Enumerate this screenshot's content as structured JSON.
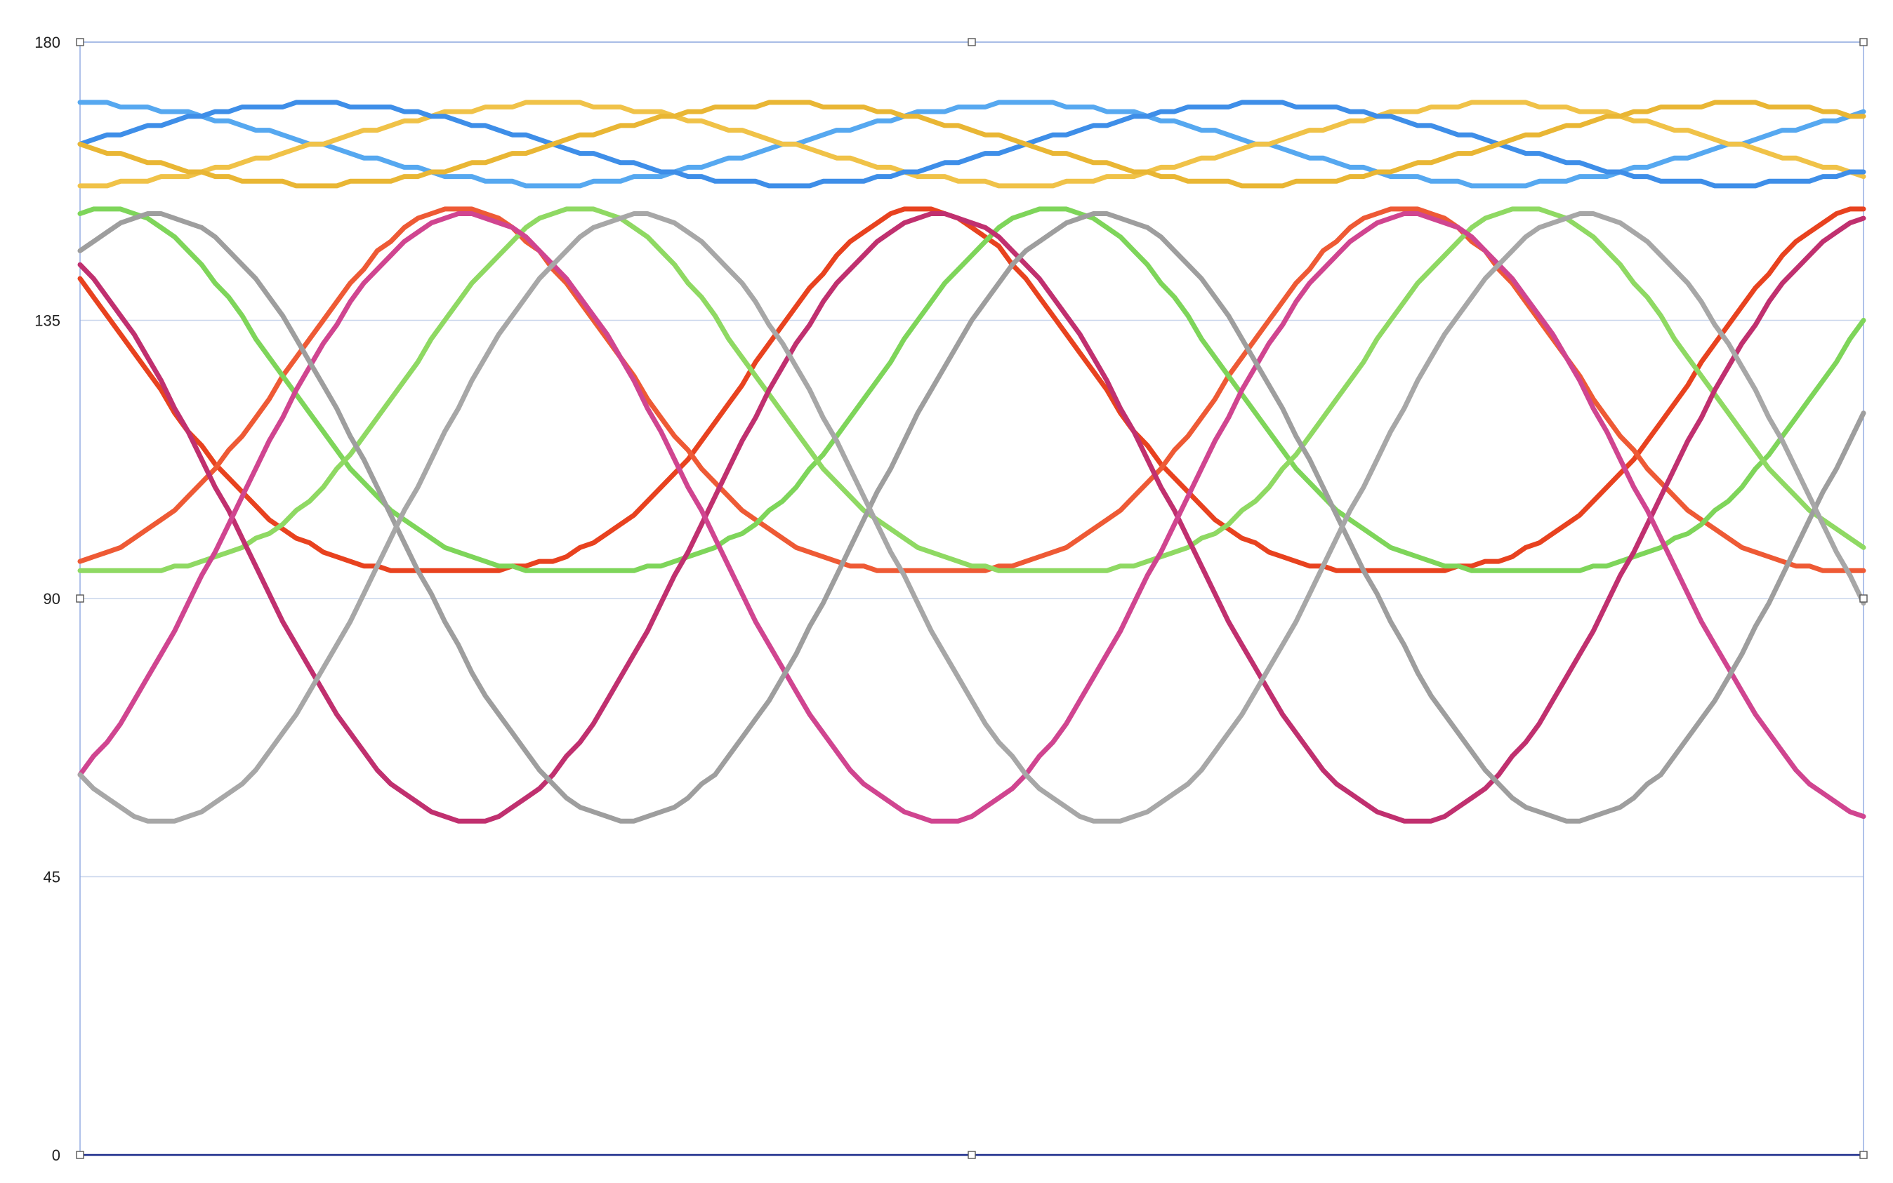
{
  "chart_data": {
    "type": "line",
    "title": "",
    "xlabel": "",
    "ylabel": "",
    "ylim": [
      0,
      180
    ],
    "yticks": [
      0,
      45,
      90,
      135,
      180
    ],
    "ytick_labels": [
      "0",
      "45",
      "90",
      "135",
      "180"
    ],
    "grid": "horizontal",
    "legend": "none",
    "x_count": 133,
    "series": [
      {
        "color": "#56A8F0",
        "kind": "flat",
        "mean": 163.5,
        "amp": 6.5,
        "period": 70,
        "phase": 0.25
      },
      {
        "color": "#F0C248",
        "kind": "flat",
        "mean": 163.5,
        "amp": 6.5,
        "period": 70,
        "phase": 0.75
      },
      {
        "color": "#3E8EE8",
        "kind": "flat",
        "mean": 163.5,
        "amp": 6.5,
        "period": 70,
        "phase": 0.0
      },
      {
        "color": "#E9B634",
        "kind": "flat",
        "mean": 163.5,
        "amp": 6.5,
        "period": 70,
        "phase": 0.5
      },
      {
        "color": "#E8421F",
        "kind": "skew",
        "mean": 118,
        "amp": 33,
        "period": 70,
        "phase": 0.36
      },
      {
        "color": "#EE5A35",
        "kind": "skew",
        "mean": 118,
        "amp": 33,
        "period": 70,
        "phase": 0.85
      },
      {
        "color": "#7ED55A",
        "kind": "skew",
        "mean": 118,
        "amp": 33,
        "period": 70,
        "phase": 0.22
      },
      {
        "color": "#8FD963",
        "kind": "skew",
        "mean": 118,
        "amp": 33,
        "period": 70,
        "phase": 0.72
      },
      {
        "color": "#C0306F",
        "kind": "sym",
        "mean": 103,
        "amp": 49,
        "period": 70,
        "phase": 0.34
      },
      {
        "color": "#D04590",
        "kind": "sym",
        "mean": 103,
        "amp": 49,
        "period": 70,
        "phase": 0.84
      },
      {
        "color": "#9E9E9E",
        "kind": "sym",
        "mean": 103,
        "amp": 49,
        "period": 70,
        "phase": 0.17
      },
      {
        "color": "#A7A7A7",
        "kind": "sym",
        "mean": 103,
        "amp": 49,
        "period": 70,
        "phase": 0.66
      }
    ]
  }
}
